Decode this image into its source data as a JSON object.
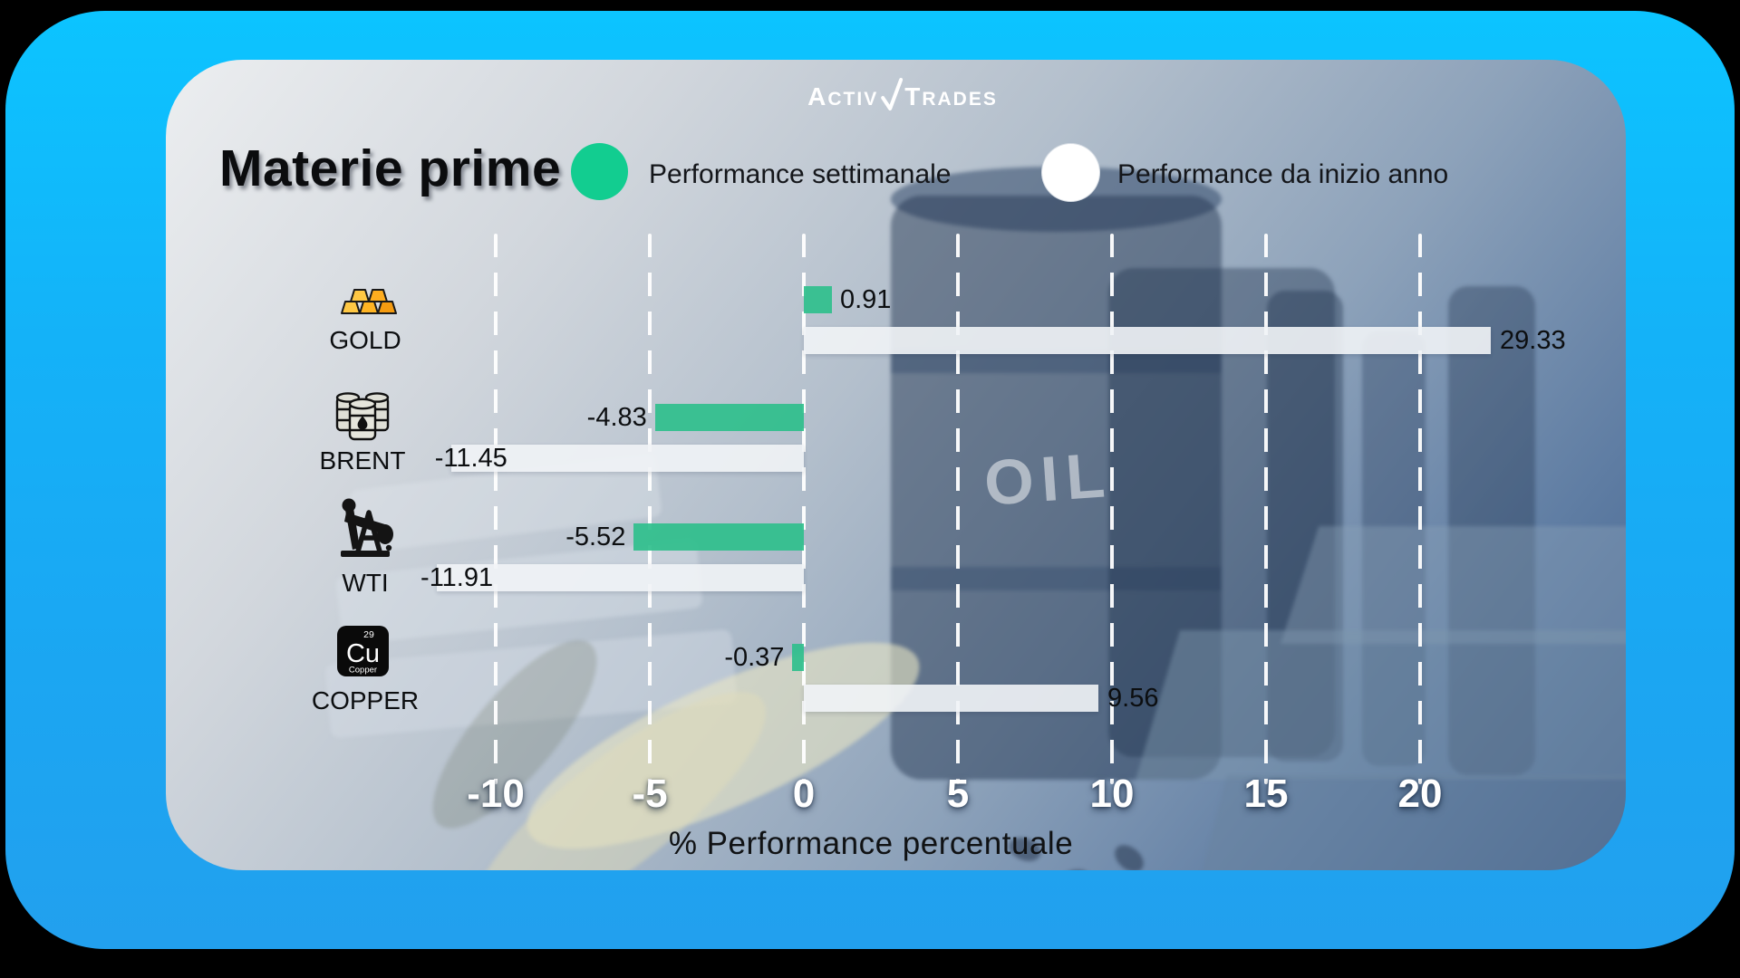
{
  "brand": {
    "name_part1": "ACTIV",
    "name_part2": "TRADES"
  },
  "header": {
    "title": "Materie prime"
  },
  "legend": [
    {
      "label": "Performance settimanale",
      "color": "#12cd90"
    },
    {
      "label": "Performance da inizio anno",
      "color": "#ffffff"
    }
  ],
  "background_watermark": "OIL",
  "copper_tile": {
    "number": "29",
    "symbol": "Cu",
    "name": "Copper"
  },
  "chart_data": {
    "type": "bar",
    "orientation": "horizontal",
    "title": "Materie prime",
    "xlabel": "% Performance percentuale",
    "categories": [
      "GOLD",
      "BRENT",
      "WTI",
      "COPPER"
    ],
    "series": [
      {
        "name": "Performance settimanale",
        "color": "#2fbf8c",
        "values": [
          0.91,
          -4.83,
          -5.52,
          -0.37
        ]
      },
      {
        "name": "Performance da inizio anno",
        "color": "#f1f4f7",
        "values": [
          29.33,
          -11.45,
          -11.91,
          9.56
        ]
      }
    ],
    "ticks": [
      -10,
      -5,
      0,
      5,
      10,
      15,
      20
    ],
    "xlim": [
      -13.7,
      22.3
    ],
    "grid": "vertical-dashed-white",
    "legend_position": "top"
  }
}
